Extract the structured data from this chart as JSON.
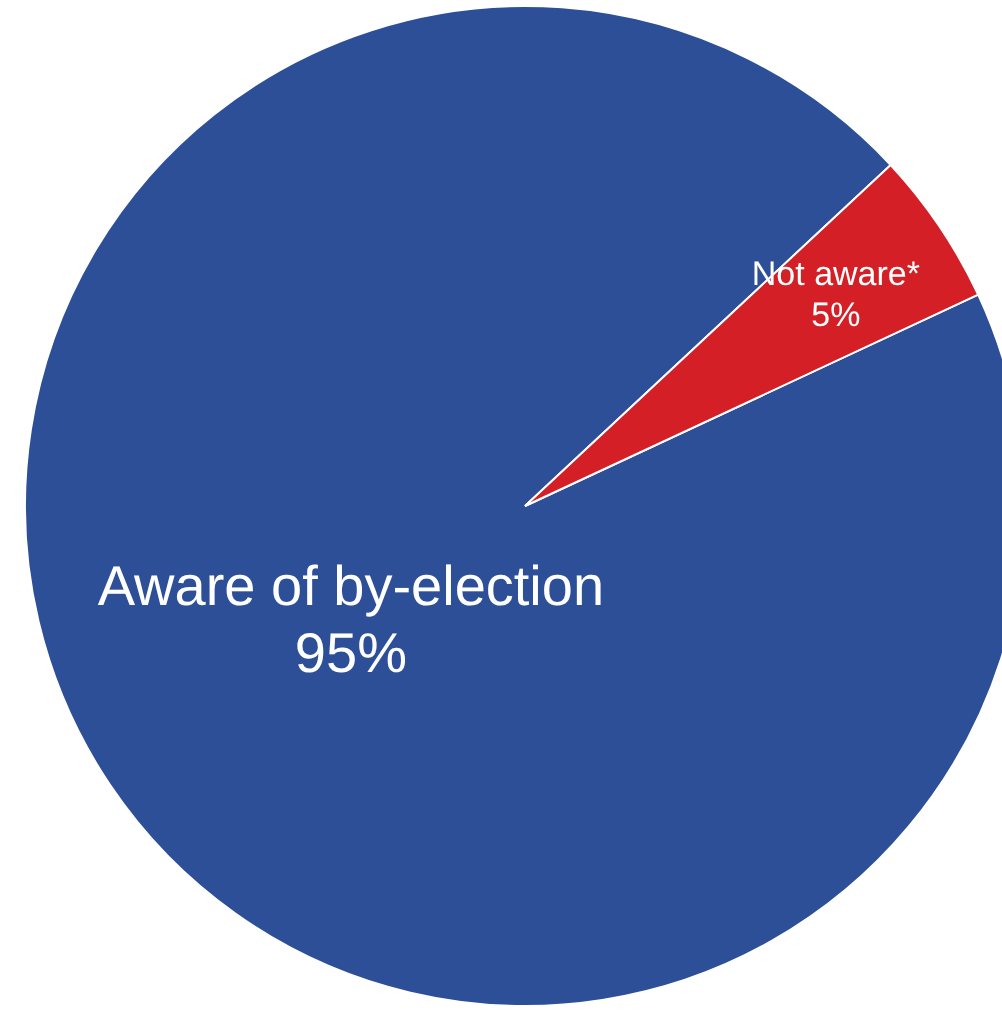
{
  "chart_data": {
    "type": "pie",
    "categories": [
      "Aware of by-election",
      "Not aware*"
    ],
    "values": [
      95,
      5
    ],
    "colors": [
      "#2c4f98",
      "#d41f26"
    ],
    "value_labels": [
      "95%",
      "5%"
    ],
    "legend": false
  }
}
